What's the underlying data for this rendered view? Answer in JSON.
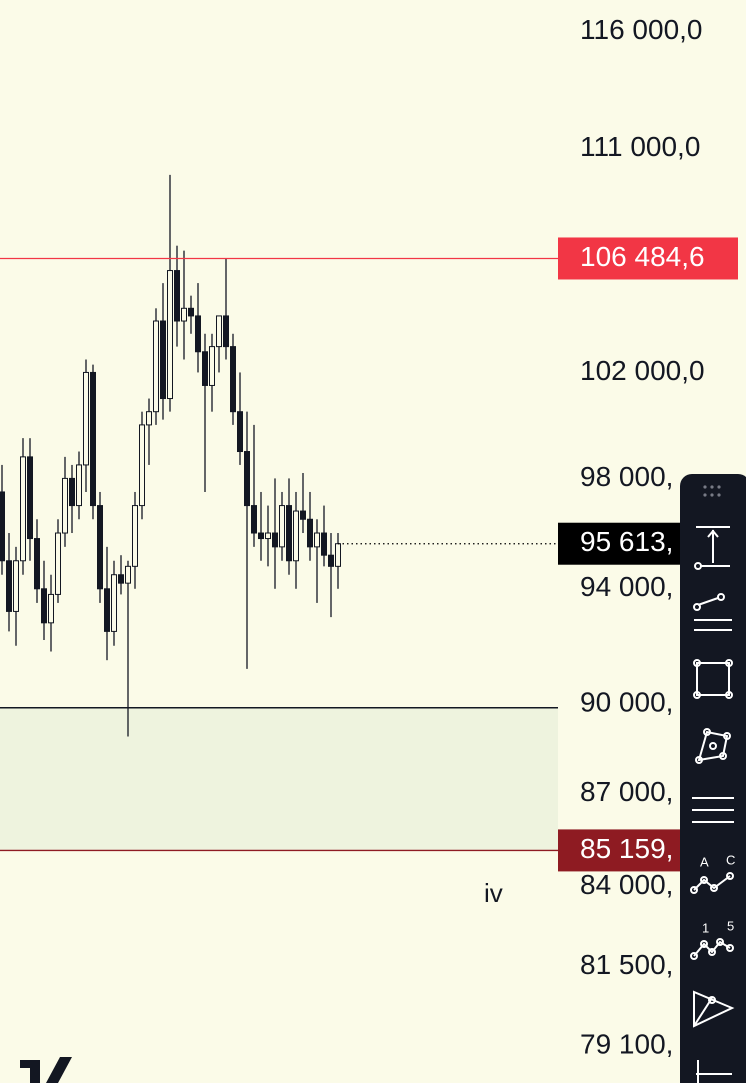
{
  "chart_data": {
    "type": "candlestick",
    "y_scale": "log",
    "ylim": [
      78000,
      117400
    ],
    "yticks": [
      {
        "value": 116000,
        "label": "116 000,0"
      },
      {
        "value": 111000,
        "label": "111 000,0"
      },
      {
        "value": 102000,
        "label": "102 000,0"
      },
      {
        "value": 98000,
        "label": "98 000,"
      },
      {
        "value": 94000,
        "label": "94 000,"
      },
      {
        "value": 90000,
        "label": "90 000,"
      },
      {
        "value": 87000,
        "label": "87 000,"
      },
      {
        "value": 84000,
        "label": "84 000,"
      },
      {
        "value": 81500,
        "label": "81 500,"
      },
      {
        "value": 79100,
        "label": "79 100,"
      }
    ],
    "candle_color": "#131722",
    "candles": {
      "open": [
        97500,
        95000,
        93200,
        95000,
        98800,
        95800,
        94000,
        92800,
        93800,
        96000,
        98000,
        97000,
        98500,
        102000,
        97000,
        94000,
        92500,
        94500,
        94200,
        94800,
        97000,
        100000,
        100500,
        104000,
        101000,
        106000,
        104000,
        104500,
        104200,
        102800,
        101500,
        103000,
        104200,
        103000,
        100500,
        99000,
        97000,
        96000,
        95800,
        96000,
        95500,
        97000,
        95000,
        96800,
        96500,
        95500,
        96000,
        95200,
        94800
      ],
      "high": [
        98500,
        96000,
        95500,
        99500,
        99500,
        96500,
        95000,
        94500,
        96500,
        98800,
        98500,
        99000,
        102500,
        102300,
        97500,
        95500,
        95000,
        95200,
        95000,
        97500,
        100500,
        101000,
        104500,
        105500,
        109900,
        107000,
        106800,
        105000,
        105500,
        103500,
        103500,
        104000,
        106500,
        103500,
        102000,
        100500,
        100000,
        97500,
        97000,
        98000,
        97500,
        98000,
        97500,
        98200,
        97500,
        96500,
        97000,
        96000,
        96000
      ],
      "low": [
        94500,
        92500,
        92000,
        94500,
        95000,
        93500,
        92200,
        91800,
        93500,
        95500,
        96000,
        96500,
        97500,
        96500,
        93500,
        91500,
        92000,
        93800,
        88900,
        94000,
        96500,
        98500,
        100000,
        100200,
        100500,
        103000,
        102500,
        103500,
        102000,
        97500,
        100500,
        102000,
        102500,
        100000,
        98500,
        91200,
        95500,
        95000,
        94800,
        94000,
        95000,
        94500,
        94000,
        96000,
        95000,
        93500,
        94800,
        93000,
        94000
      ],
      "close": [
        95000,
        93200,
        95000,
        98800,
        95800,
        94000,
        92800,
        93800,
        96000,
        98000,
        97000,
        98500,
        102000,
        97000,
        94000,
        92500,
        94500,
        94200,
        94800,
        97000,
        100000,
        100500,
        104000,
        101000,
        106000,
        104000,
        104500,
        104200,
        102800,
        101500,
        103000,
        104200,
        103000,
        100500,
        99000,
        97000,
        96000,
        95800,
        96000,
        95500,
        97000,
        95000,
        96800,
        96500,
        95500,
        96000,
        95200,
        94800,
        95613
      ]
    },
    "price_lines": [
      {
        "value": 106484.6,
        "label": "106 484,6",
        "color": "#f23645"
      },
      {
        "value": 95613,
        "label": "95 613,",
        "color": "#000000"
      },
      {
        "value": 85159,
        "label": "85 159,",
        "color": "#8e1b22"
      }
    ],
    "zone": {
      "top": 89870,
      "color": "#eef3de"
    },
    "annotation": "iv"
  }
}
